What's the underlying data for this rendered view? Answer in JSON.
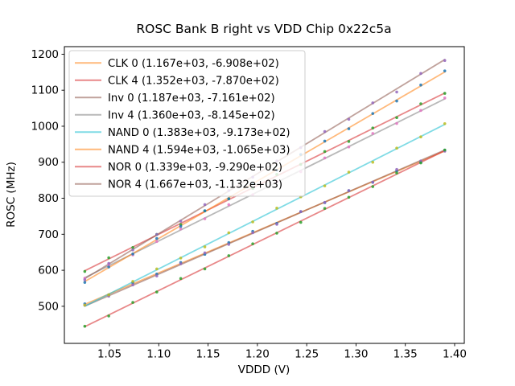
{
  "figure": {
    "background": "#ffffff",
    "spine_color": "#000000"
  },
  "chart_data": {
    "type": "scatter",
    "title": "ROSC Bank B right vs VDD Chip 0x22c5a",
    "xlabel": "VDDD (V)",
    "ylabel": "ROSC (MHz)",
    "xlim": [
      1.0043,
      1.4098
    ],
    "ylim": [
      397,
      1221
    ],
    "grid": false,
    "legend_position": "upper-left",
    "legend_border_color": "#cccccc",
    "xticks": [
      1.05,
      1.1,
      1.15,
      1.2,
      1.25,
      1.3,
      1.35,
      1.4
    ],
    "xtick_labels": [
      "1.05",
      "1.10",
      "1.15",
      "1.20",
      "1.25",
      "1.30",
      "1.35",
      "1.40"
    ],
    "yticks": [
      500,
      600,
      700,
      800,
      900,
      1000,
      1100,
      1200
    ],
    "ytick_labels": [
      "500",
      "600",
      "700",
      "800",
      "900",
      "1000",
      "1100",
      "1200"
    ],
    "x": [
      1.025,
      1.0493,
      1.0737,
      1.098,
      1.1223,
      1.1467,
      1.171,
      1.1953,
      1.2197,
      1.244,
      1.2683,
      1.2927,
      1.317,
      1.3413,
      1.3657,
      1.39
    ],
    "series": [
      {
        "name": "CLK 0",
        "legend_label": "CLK 0 (1.167e+03, -6.908e+02)",
        "fit_slope": 1167,
        "fit_intercept": -690.8,
        "line_color": "#ff7f0e",
        "marker_color": "#1f77b4",
        "y": [
          506.9,
          531.8,
          565.2,
          589.6,
          621.5,
          644.4,
          676.8,
          708.2,
          730.1,
          762.9,
          787.8,
          821.2,
          844.1,
          875.5,
          899.9,
          933.3
        ]
      },
      {
        "name": "CLK 4",
        "legend_label": "CLK 4 (1.352e+03, -7.870e+02)",
        "fit_slope": 1352,
        "fit_intercept": -787,
        "line_color": "#d62728",
        "marker_color": "#2ca02c",
        "y": [
          596.8,
          634.7,
          663.1,
          699.5,
          726.9,
          764.8,
          798.7,
          827.1,
          866.0,
          893.9,
          929.8,
          957.7,
          995.1,
          1024.0,
          1062.4,
          1091.3
        ]
      },
      {
        "name": "Inv 0",
        "legend_label": "Inv 0 (1.187e+03, -7.161e+02)",
        "fit_slope": 1187,
        "fit_intercept": -716.1,
        "line_color": "#8c564b",
        "marker_color": "#9467bd",
        "y": [
          503.1,
          528.0,
          559.4,
          584.2,
          618.1,
          648.5,
          671.9,
          704.3,
          727.7,
          763.0,
          788.4,
          821.3,
          844.7,
          880.1,
          903.5,
          930.8
        ]
      },
      {
        "name": "Inv 4",
        "legend_label": "Inv 4 (1.360e+03, -8.145e+02)",
        "fit_slope": 1360,
        "fit_intercept": -814.5,
        "line_color": "#7f7f7f",
        "marker_color": "#e377c2",
        "y": [
          578.0,
          615.1,
          642.7,
          679.8,
          714.9,
          743.0,
          782.1,
          809.7,
          846.2,
          873.8,
          911.9,
          942.5,
          980.1,
          1007.7,
          1043.8,
          1078.4
        ]
      },
      {
        "name": "NAND 0",
        "legend_label": "NAND 0 (1.383e+03, -9.173e+02)",
        "fit_slope": 1383,
        "fit_intercept": -917.3,
        "line_color": "#17becf",
        "marker_color": "#bcbd22",
        "y": [
          503.3,
          531.9,
          569.1,
          603.7,
          633.9,
          665.0,
          704.2,
          734.3,
          772.5,
          804.1,
          834.3,
          872.4,
          900.1,
          939.2,
          970.4,
          1007.1
        ]
      },
      {
        "name": "NAND 4",
        "legend_label": "NAND 4 (1.594e+03, -1.065e+03)",
        "fit_slope": 1594,
        "fit_intercept": -1065,
        "line_color": "#ff7f0e",
        "marker_color": "#1f77b4",
        "y": [
          566.4,
          609.1,
          645.4,
          688.2,
          722.0,
          765.3,
          798.6,
          841.4,
          877.6,
          921.4,
          958.7,
          993.0,
          1035.3,
          1070.1,
          1114.4,
          1153.7
        ]
      },
      {
        "name": "NOR 0",
        "legend_label": "NOR 0 (1.339e+03, -9.290e+02)",
        "fit_slope": 1339,
        "fit_intercept": -929,
        "line_color": "#d62728",
        "marker_color": "#2ca02c",
        "y": [
          444.5,
          473.1,
          510.7,
          539.7,
          577.3,
          603.9,
          640.5,
          673.5,
          703.1,
          733.2,
          771.8,
          802.8,
          832.4,
          870.0,
          898.1,
          934.0
        ]
      },
      {
        "name": "NOR 4",
        "legend_label": "NOR 4 (1.667e+03, -1.132e+03)",
        "fit_slope": 1667,
        "fit_intercept": -1132,
        "line_color": "#8c564b",
        "marker_color": "#9467bd",
        "y": [
          573.7,
          619.2,
          656.3,
          699.4,
          736.4,
          782.5,
          821.5,
          858.6,
          903.6,
          940.7,
          985.3,
          1019.3,
          1064.9,
          1095.0,
          1146.5,
          1182.6
        ]
      }
    ],
    "style": {
      "line_width": 1.8,
      "line_alpha": 0.55,
      "marker_radius": 1.8,
      "marker_alpha": 0.85
    }
  }
}
